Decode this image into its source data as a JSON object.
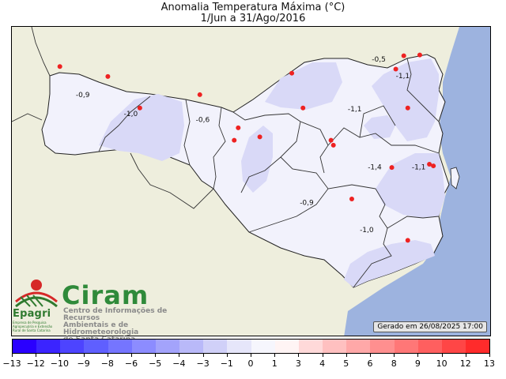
{
  "title": {
    "line1": "Anomalia Temperatura Máxima (°C)",
    "line2": "1/Jun a 31/Ago/2016"
  },
  "map": {
    "generated_stamp": "Gerado em 26/08/2025 17:00",
    "colors": {
      "ocean": "#9db3df",
      "neighbor_land": "#eeeedd",
      "anomaly_base": "#f2f2fc",
      "anomaly_light": "#d9d9f7",
      "station_marker": "#ee2222",
      "borders": "#222222"
    },
    "contour_labels": [
      {
        "text": "-0,9",
        "lon": -53.1,
        "lat": -26.75
      },
      {
        "text": "-1,0",
        "lon": -52.5,
        "lat": -26.98
      },
      {
        "text": "-0,6",
        "lon": -51.6,
        "lat": -27.05
      },
      {
        "text": "-0,5",
        "lon": -49.4,
        "lat": -26.32
      },
      {
        "text": "-1,1",
        "lon": -49.1,
        "lat": -26.52
      },
      {
        "text": "-1,1",
        "lon": -49.7,
        "lat": -26.92
      },
      {
        "text": "-1,4",
        "lon": -49.45,
        "lat": -27.62
      },
      {
        "text": "-1,1",
        "lon": -48.9,
        "lat": -27.62
      },
      {
        "text": "-0,9",
        "lon": -50.3,
        "lat": -28.05
      },
      {
        "text": "-1,0",
        "lon": -49.55,
        "lat": -28.38
      }
    ],
    "stations": [
      {
        "lon": -53.3,
        "lat": -26.38
      },
      {
        "lon": -52.7,
        "lat": -26.5
      },
      {
        "lon": -52.3,
        "lat": -26.88
      },
      {
        "lon": -51.55,
        "lat": -26.72
      },
      {
        "lon": -51.07,
        "lat": -27.12
      },
      {
        "lon": -51.12,
        "lat": -27.27
      },
      {
        "lon": -50.8,
        "lat": -27.23
      },
      {
        "lon": -50.4,
        "lat": -26.46
      },
      {
        "lon": -50.26,
        "lat": -26.88
      },
      {
        "lon": -49.91,
        "lat": -27.27
      },
      {
        "lon": -49.88,
        "lat": -27.33
      },
      {
        "lon": -49.0,
        "lat": -26.25
      },
      {
        "lon": -48.8,
        "lat": -26.24
      },
      {
        "lon": -49.1,
        "lat": -26.41
      },
      {
        "lon": -48.95,
        "lat": -26.88
      },
      {
        "lon": -49.15,
        "lat": -27.6
      },
      {
        "lon": -48.68,
        "lat": -27.56
      },
      {
        "lon": -48.63,
        "lat": -27.58
      },
      {
        "lon": -49.65,
        "lat": -27.98
      },
      {
        "lon": -48.95,
        "lat": -28.48
      }
    ]
  },
  "logos": {
    "epagri_name": "Epagri",
    "epagri_subtitle": "Empresa de Pesquisa Agropecuária e Extensão Rural de Santa Catarina",
    "ciram_name": "Ciram",
    "ciram_line1": "Centro de Informações de Recursos",
    "ciram_line2": "Ambientais e de Hidrometeorologia",
    "ciram_line3": "de Santa Catarina"
  },
  "colorbar": {
    "ticks": [
      "−13",
      "−12",
      "−10",
      "−9",
      "−8",
      "−6",
      "−5",
      "−4",
      "−3",
      "−1",
      "0",
      "1",
      "3",
      "4",
      "5",
      "6",
      "8",
      "9",
      "10",
      "12",
      "13"
    ],
    "segment_colors": [
      "#2a00ff",
      "#3b24ff",
      "#4d44ff",
      "#5f5fff",
      "#7575ff",
      "#8c8cff",
      "#a3a3fb",
      "#b9b9f9",
      "#d0d0f8",
      "#e6e6fa",
      "#f6f6fd",
      "#fff4f4",
      "#ffd9d9",
      "#ffc0c0",
      "#ffa8a8",
      "#ff8f8f",
      "#ff7777",
      "#ff5f5f",
      "#ff4646",
      "#ff2b2b"
    ]
  }
}
